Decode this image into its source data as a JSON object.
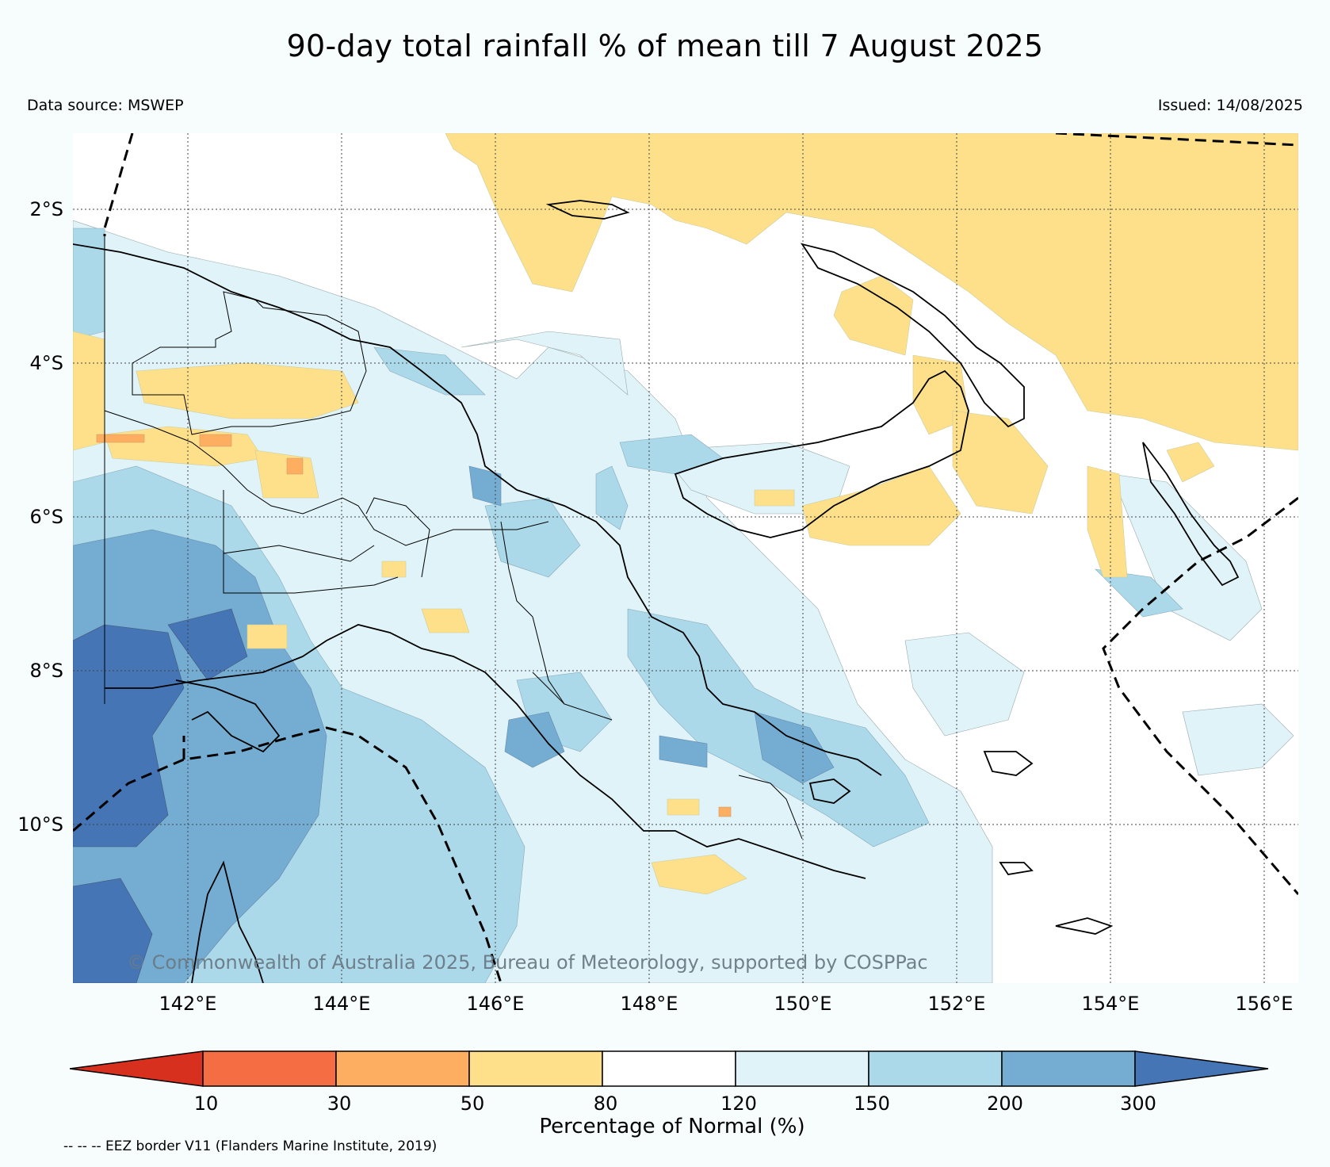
{
  "title": "90-day total rainfall % of mean till 7 August 2025",
  "data_source": "Data source: MSWEP",
  "issued": "Issued: 14/08/2025",
  "copyright": "© Commonwealth of Australia 2025, Bureau of Meteorology, supported by COSPPac",
  "lat_labels": [
    "2°S",
    "4°S",
    "6°S",
    "8°S",
    "10°S"
  ],
  "lon_labels": [
    "142°E",
    "144°E",
    "146°E",
    "148°E",
    "150°E",
    "152°E",
    "154°E",
    "156°E"
  ],
  "colorbar": {
    "title": "Percentage of Normal (%)",
    "ticks": [
      "10",
      "30",
      "50",
      "80",
      "120",
      "150",
      "200",
      "300"
    ],
    "colors": [
      "#d7301f",
      "#f46d43",
      "#fdae61",
      "#fee08b",
      "#ffffff",
      "#e0f3f8",
      "#abd9e9",
      "#74add1",
      "#4575b4"
    ]
  },
  "eez_note": "-- -- -- EEZ border V11 (Flanders Marine Institute, 2019)"
}
